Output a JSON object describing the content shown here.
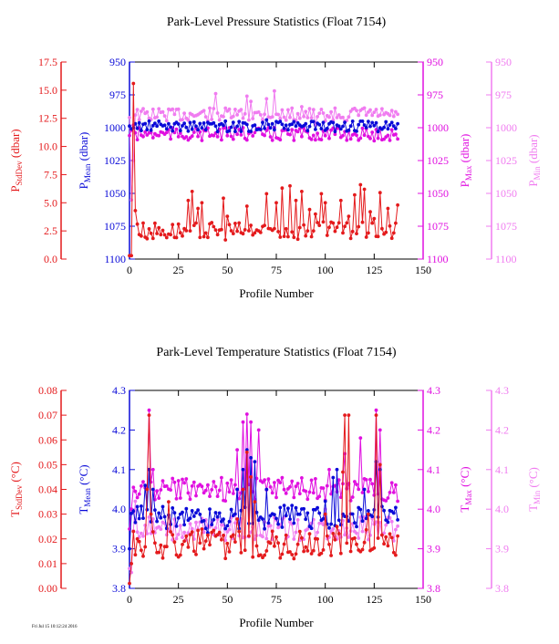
{
  "stamp": "Fri Jul 15 10:12:24 2016",
  "colors": {
    "red": "#e41a1c",
    "blue": "#0a0ad8",
    "magenta": "#e010e0",
    "pink": "#f07cf0",
    "black": "#000000"
  },
  "chart_data": [
    {
      "type": "line",
      "title": "Park-Level Pressure Statistics (Float 7154)",
      "xlabel": "Profile Number",
      "xlim": [
        0,
        150
      ],
      "xticks": [
        "0",
        "25",
        "50",
        "75",
        "100",
        "125",
        "150"
      ],
      "axes": [
        {
          "side": "left-outer",
          "color": "red",
          "label": "P",
          "sub": "StdDev",
          "unit": " (dbar)",
          "lim": [
            0,
            17.5
          ],
          "reversed": false,
          "ticks": [
            "0.0",
            "2.5",
            "5.0",
            "7.5",
            "10.0",
            "12.5",
            "15.0",
            "17.5"
          ]
        },
        {
          "side": "left-inner",
          "color": "blue",
          "label": "P",
          "sub": "Mean",
          "unit": " (dbar)",
          "lim": [
            950,
            1100
          ],
          "reversed": true,
          "ticks": [
            "950",
            "975",
            "1000",
            "1025",
            "1050",
            "1075",
            "1100"
          ]
        },
        {
          "side": "right-inner",
          "color": "magenta",
          "label": "P",
          "sub": "Max",
          "unit": " (dbar)",
          "lim": [
            950,
            1100
          ],
          "reversed": true,
          "ticks": [
            "950",
            "975",
            "1000",
            "1025",
            "1050",
            "1075",
            "1100"
          ]
        },
        {
          "side": "right-outer",
          "color": "pink",
          "label": "P",
          "sub": "Min",
          "unit": " (dbar)",
          "lim": [
            950,
            1100
          ],
          "reversed": true,
          "ticks": [
            "950",
            "975",
            "1000",
            "1025",
            "1050",
            "1075",
            "1100"
          ]
        }
      ],
      "series": [
        {
          "axis": 3,
          "color": "pink",
          "kind": "random",
          "n": 138,
          "base": 990,
          "amp": 5,
          "spikes": [
            [
              1,
              1055
            ],
            [
              2,
              1025
            ],
            [
              44,
              974
            ],
            [
              60,
              976
            ],
            [
              62,
              980
            ],
            [
              70,
              978
            ],
            [
              74,
              972
            ],
            [
              88,
              984
            ],
            [
              95,
              998
            ],
            [
              102,
              992
            ],
            [
              110,
              995
            ],
            [
              120,
              985
            ],
            [
              130,
              990
            ]
          ]
        },
        {
          "axis": 2,
          "color": "magenta",
          "kind": "random",
          "n": 138,
          "base": 1005,
          "amp": 5,
          "spikes": [
            [
              1,
              1002
            ],
            [
              2,
              998
            ],
            [
              58,
              1000
            ],
            [
              110,
              1003
            ],
            [
              118,
              1008
            ],
            [
              125,
              1010
            ]
          ]
        },
        {
          "axis": 1,
          "color": "blue",
          "kind": "random",
          "n": 138,
          "base": 999,
          "amp": 4,
          "spikes": [
            [
              1,
              1001
            ],
            [
              2,
              1000
            ],
            [
              15,
              995
            ],
            [
              40,
              996
            ],
            [
              70,
              994
            ],
            [
              100,
              1002
            ]
          ]
        },
        {
          "axis": 0,
          "color": "red",
          "kind": "random",
          "n": 138,
          "base": 2.5,
          "amp": 0.8,
          "spikes": [
            [
              0,
              0.3
            ],
            [
              1,
              0.3
            ],
            [
              2,
              15.6
            ],
            [
              3,
              4.3
            ],
            [
              4,
              3.1
            ],
            [
              30,
              5.2
            ],
            [
              32,
              6.0
            ],
            [
              35,
              4.5
            ],
            [
              37,
              5.0
            ],
            [
              48,
              5.4
            ],
            [
              50,
              3.8
            ],
            [
              60,
              4.7
            ],
            [
              62,
              3.0
            ],
            [
              70,
              5.8
            ],
            [
              75,
              5.0
            ],
            [
              78,
              6.3
            ],
            [
              82,
              6.5
            ],
            [
              85,
              5.2
            ],
            [
              88,
              6.0
            ],
            [
              92,
              4.4
            ],
            [
              95,
              4.0
            ],
            [
              98,
              5.8
            ],
            [
              100,
              5.0
            ],
            [
              104,
              3.2
            ],
            [
              108,
              5.2
            ],
            [
              112,
              3.8
            ],
            [
              115,
              5.7
            ],
            [
              118,
              6.6
            ],
            [
              120,
              6.2
            ],
            [
              123,
              4.2
            ],
            [
              125,
              3.6
            ],
            [
              128,
              5.9
            ],
            [
              132,
              4.5
            ],
            [
              137,
              4.8
            ]
          ]
        }
      ]
    },
    {
      "type": "line",
      "title": "Park-Level Temperature Statistics (Float 7154)",
      "xlabel": "Profile Number",
      "xlim": [
        0,
        150
      ],
      "xticks": [
        "0",
        "25",
        "50",
        "75",
        "100",
        "125",
        "150"
      ],
      "axes": [
        {
          "side": "left-outer",
          "color": "red",
          "label": "T",
          "sub": "StdDev",
          "unit": " (°C)",
          "lim": [
            0,
            0.08
          ],
          "reversed": false,
          "ticks": [
            "0.00",
            "0.01",
            "0.02",
            "0.03",
            "0.04",
            "0.05",
            "0.06",
            "0.07",
            "0.08"
          ]
        },
        {
          "side": "left-inner",
          "color": "blue",
          "label": "T",
          "sub": "Mean",
          "unit": " (°C)",
          "lim": [
            3.8,
            4.3
          ],
          "reversed": false,
          "ticks": [
            "3.8",
            "3.9",
            "4.0",
            "4.1",
            "4.2",
            "4.3"
          ]
        },
        {
          "side": "right-inner",
          "color": "magenta",
          "label": "T",
          "sub": "Max",
          "unit": " (°C)",
          "lim": [
            3.8,
            4.3
          ],
          "reversed": false,
          "ticks": [
            "3.8",
            "3.9",
            "4.0",
            "4.1",
            "4.2",
            "4.3"
          ]
        },
        {
          "side": "right-outer",
          "color": "pink",
          "label": "T",
          "sub": "Min",
          "unit": " (°C)",
          "lim": [
            3.8,
            4.3
          ],
          "reversed": false,
          "ticks": [
            "3.8",
            "3.9",
            "4.0",
            "4.1",
            "4.2",
            "4.3"
          ]
        }
      ],
      "series": [
        {
          "axis": 3,
          "color": "pink",
          "kind": "random",
          "n": 138,
          "base": 3.95,
          "amp": 0.03,
          "spikes": [
            [
              0,
              3.85
            ],
            [
              1,
              3.84
            ],
            [
              3,
              4.02
            ],
            [
              10,
              3.98
            ],
            [
              55,
              4.05
            ],
            [
              60,
              4.08
            ],
            [
              100,
              4.0
            ],
            [
              120,
              3.98
            ],
            [
              135,
              3.92
            ]
          ]
        },
        {
          "axis": 2,
          "color": "magenta",
          "kind": "random",
          "n": 138,
          "base": 4.05,
          "amp": 0.03,
          "spikes": [
            [
              0,
              3.95
            ],
            [
              1,
              4.0
            ],
            [
              10,
              4.25
            ],
            [
              12,
              4.1
            ],
            [
              55,
              4.15
            ],
            [
              58,
              4.22
            ],
            [
              60,
              4.24
            ],
            [
              62,
              4.22
            ],
            [
              66,
              4.2
            ],
            [
              102,
              4.1
            ],
            [
              110,
              4.14
            ],
            [
              118,
              4.18
            ],
            [
              126,
              4.25
            ],
            [
              128,
              4.2
            ]
          ]
        },
        {
          "axis": 1,
          "color": "blue",
          "kind": "random",
          "n": 138,
          "base": 3.98,
          "amp": 0.03,
          "spikes": [
            [
              0,
              3.9
            ],
            [
              8,
              4.06
            ],
            [
              10,
              4.1
            ],
            [
              12,
              4.05
            ],
            [
              40,
              3.94
            ],
            [
              55,
              4.05
            ],
            [
              58,
              4.1
            ],
            [
              60,
              4.15
            ],
            [
              62,
              4.13
            ],
            [
              64,
              4.12
            ],
            [
              70,
              4.05
            ],
            [
              100,
              4.02
            ],
            [
              104,
              4.08
            ],
            [
              106,
              4.1
            ],
            [
              120,
              4.05
            ],
            [
              126,
              4.12
            ],
            [
              128,
              4.1
            ],
            [
              135,
              3.99
            ]
          ]
        },
        {
          "axis": 0,
          "color": "red",
          "kind": "random",
          "n": 138,
          "base": 0.018,
          "amp": 0.006,
          "spikes": [
            [
              0,
              0.002
            ],
            [
              1,
              0.01
            ],
            [
              4,
              0.02
            ],
            [
              9,
              0.04
            ],
            [
              10,
              0.07
            ],
            [
              11,
              0.03
            ],
            [
              20,
              0.035
            ],
            [
              33,
              0.015
            ],
            [
              55,
              0.028
            ],
            [
              58,
              0.04
            ],
            [
              60,
              0.055
            ],
            [
              62,
              0.045
            ],
            [
              64,
              0.035
            ],
            [
              84,
              0.012
            ],
            [
              100,
              0.03
            ],
            [
              106,
              0.025
            ],
            [
              109,
              0.047
            ],
            [
              110,
              0.07
            ],
            [
              112,
              0.07
            ],
            [
              114,
              0.02
            ],
            [
              122,
              0.03
            ],
            [
              126,
              0.07
            ],
            [
              128,
              0.05
            ],
            [
              133,
              0.022
            ]
          ]
        }
      ]
    }
  ]
}
